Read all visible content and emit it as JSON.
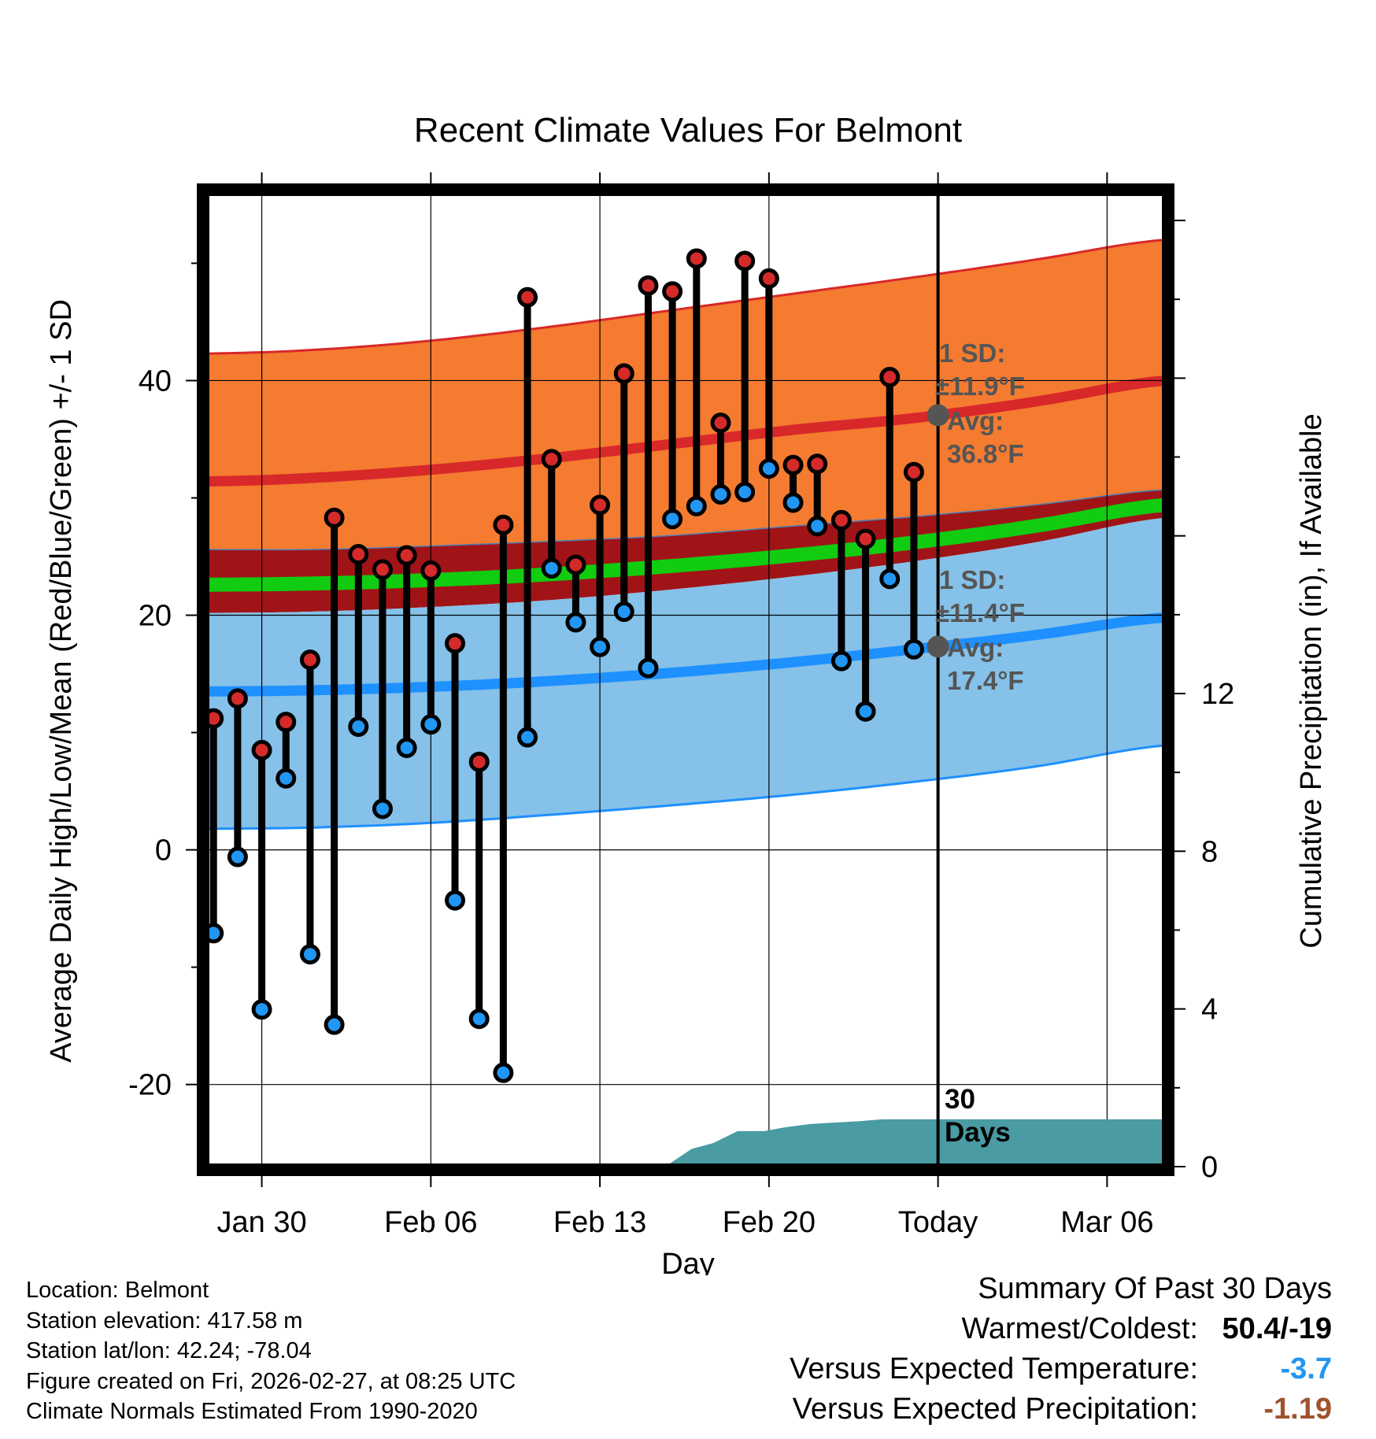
{
  "chart_data": {
    "type": "line",
    "title": "Recent Climate Values For Belmont",
    "xlabel": "Day",
    "ylabel": "Average Daily High/Low/Mean (Red/Blue/Green) +/- 1 SD",
    "y2label": "Cumulative Precipitation (in), If Available",
    "ylim": [
      -27,
      56
    ],
    "y2lim": [
      0,
      24.7
    ],
    "yticks": [
      -20,
      0,
      20,
      40
    ],
    "y2ticks": [
      0,
      4,
      8,
      12
    ],
    "xlim_days": [
      -29.3,
      10.4
    ],
    "xticks": [
      {
        "day": -27,
        "label": "Jan 30"
      },
      {
        "day": -20,
        "label": "Feb 06"
      },
      {
        "day": -13,
        "label": "Feb 13"
      },
      {
        "day": -6,
        "label": "Feb 20"
      },
      {
        "day": 1,
        "label": "Today"
      },
      {
        "day": 8,
        "label": "Mar 06"
      }
    ],
    "today_day": 1,
    "normals": {
      "day": [
        -29.3,
        -25,
        -20,
        -15,
        -10,
        -5,
        0,
        5,
        10.4
      ],
      "high_plus_sd": [
        42.3,
        42.6,
        43.4,
        44.6,
        46.0,
        47.4,
        48.8,
        50.3,
        52.0
      ],
      "high_avg": [
        31.4,
        31.7,
        32.4,
        33.4,
        34.6,
        35.8,
        36.8,
        38.2,
        40.0
      ],
      "high_minus_sd": [
        25.6,
        25.6,
        25.9,
        26.3,
        26.8,
        27.6,
        28.4,
        29.4,
        30.7
      ],
      "mean_plus": [
        23.2,
        23.3,
        23.6,
        24.1,
        24.8,
        25.7,
        26.8,
        28.2,
        30.0
      ],
      "mean_minus": [
        22.0,
        22.1,
        22.4,
        22.9,
        23.6,
        24.5,
        25.6,
        27.0,
        28.8
      ],
      "low_plus_sd": [
        20.2,
        20.3,
        20.7,
        21.3,
        22.2,
        23.3,
        24.6,
        26.2,
        28.3
      ],
      "low_avg": [
        13.5,
        13.6,
        13.9,
        14.4,
        15.1,
        16.0,
        17.1,
        18.3,
        19.8
      ],
      "low_minus_sd": [
        1.8,
        1.9,
        2.3,
        3.0,
        3.8,
        4.7,
        5.8,
        7.1,
        8.9
      ]
    },
    "daily": {
      "day": [
        -29,
        -28,
        -27,
        -26,
        -25,
        -24,
        -23,
        -22,
        -21,
        -20,
        -19,
        -18,
        -17,
        -16,
        -15,
        -14,
        -13,
        -12,
        -11,
        -10,
        -9,
        -8,
        -7,
        -6,
        -5,
        -4,
        -3,
        -2,
        -1,
        0
      ],
      "high": [
        11.2,
        12.9,
        8.5,
        10.9,
        16.2,
        28.3,
        25.2,
        23.9,
        25.1,
        23.8,
        17.6,
        7.5,
        27.7,
        47.1,
        33.3,
        24.3,
        29.4,
        40.6,
        48.1,
        47.6,
        50.4,
        36.4,
        50.2,
        48.7,
        32.8,
        32.9,
        28.1,
        26.5,
        40.3,
        32.2
      ],
      "low": [
        -7.1,
        -0.6,
        -13.6,
        6.1,
        -8.9,
        -14.9,
        10.5,
        3.5,
        8.7,
        10.7,
        -4.3,
        -14.4,
        -19.0,
        9.6,
        24.0,
        19.4,
        17.3,
        20.3,
        15.5,
        28.2,
        29.3,
        30.3,
        30.5,
        32.5,
        29.6,
        27.6,
        16.1,
        11.8,
        23.1,
        17.1
      ]
    },
    "precip_cumulative": {
      "day": [
        -29.3,
        -10.3,
        -9.2,
        -8.3,
        -7.3,
        -6.2,
        -5.3,
        -4.3,
        -3.2,
        -2.3,
        -1.3,
        0,
        10.4
      ],
      "value": [
        0,
        0,
        0.45,
        0.6,
        0.9,
        0.9,
        1.0,
        1.08,
        1.12,
        1.15,
        1.2,
        1.2,
        1.2
      ]
    },
    "annotations": {
      "high_sd": "1 SD:",
      "high_sd_value": "±11.9°F",
      "high_avg_label": "Avg:",
      "high_avg_value": "36.8°F",
      "low_sd": "1 SD:",
      "low_sd_value": "±11.4°F",
      "low_avg_label": "Avg:",
      "low_avg_value": "17.4°F",
      "days_count": "30",
      "days_label": "Days"
    },
    "colors": {
      "high_band": "#f47b30",
      "high_line": "#d8282a",
      "dark_red_band": "#a01418",
      "mean_band": "#11cc11",
      "low_band": "#85c1e8",
      "low_line": "#1e90ff",
      "precip": "#4a9ba3",
      "annotation": "#555555",
      "high_marker": "#d42a2a",
      "low_marker": "#2196f3"
    }
  },
  "info": {
    "location": "Location: Belmont",
    "elevation": "Station elevation: 417.58 m",
    "latlon": "Station lat/lon: 42.24; -78.04",
    "created": "Figure created on Fri, 2026-02-27, at 08:25 UTC",
    "normals": "Climate Normals Estimated From 1990-2020"
  },
  "summary": {
    "title": "Summary Of Past 30 Days",
    "warmest_label": "Warmest/Coldest:",
    "warmest_value": "50.4/-19",
    "temp_label": "Versus Expected Temperature:",
    "temp_value": "-3.7",
    "temp_color": "#2196f3",
    "precip_label": "Versus Expected Precipitation:",
    "precip_value": "-1.19",
    "precip_color": "#a0522d"
  }
}
